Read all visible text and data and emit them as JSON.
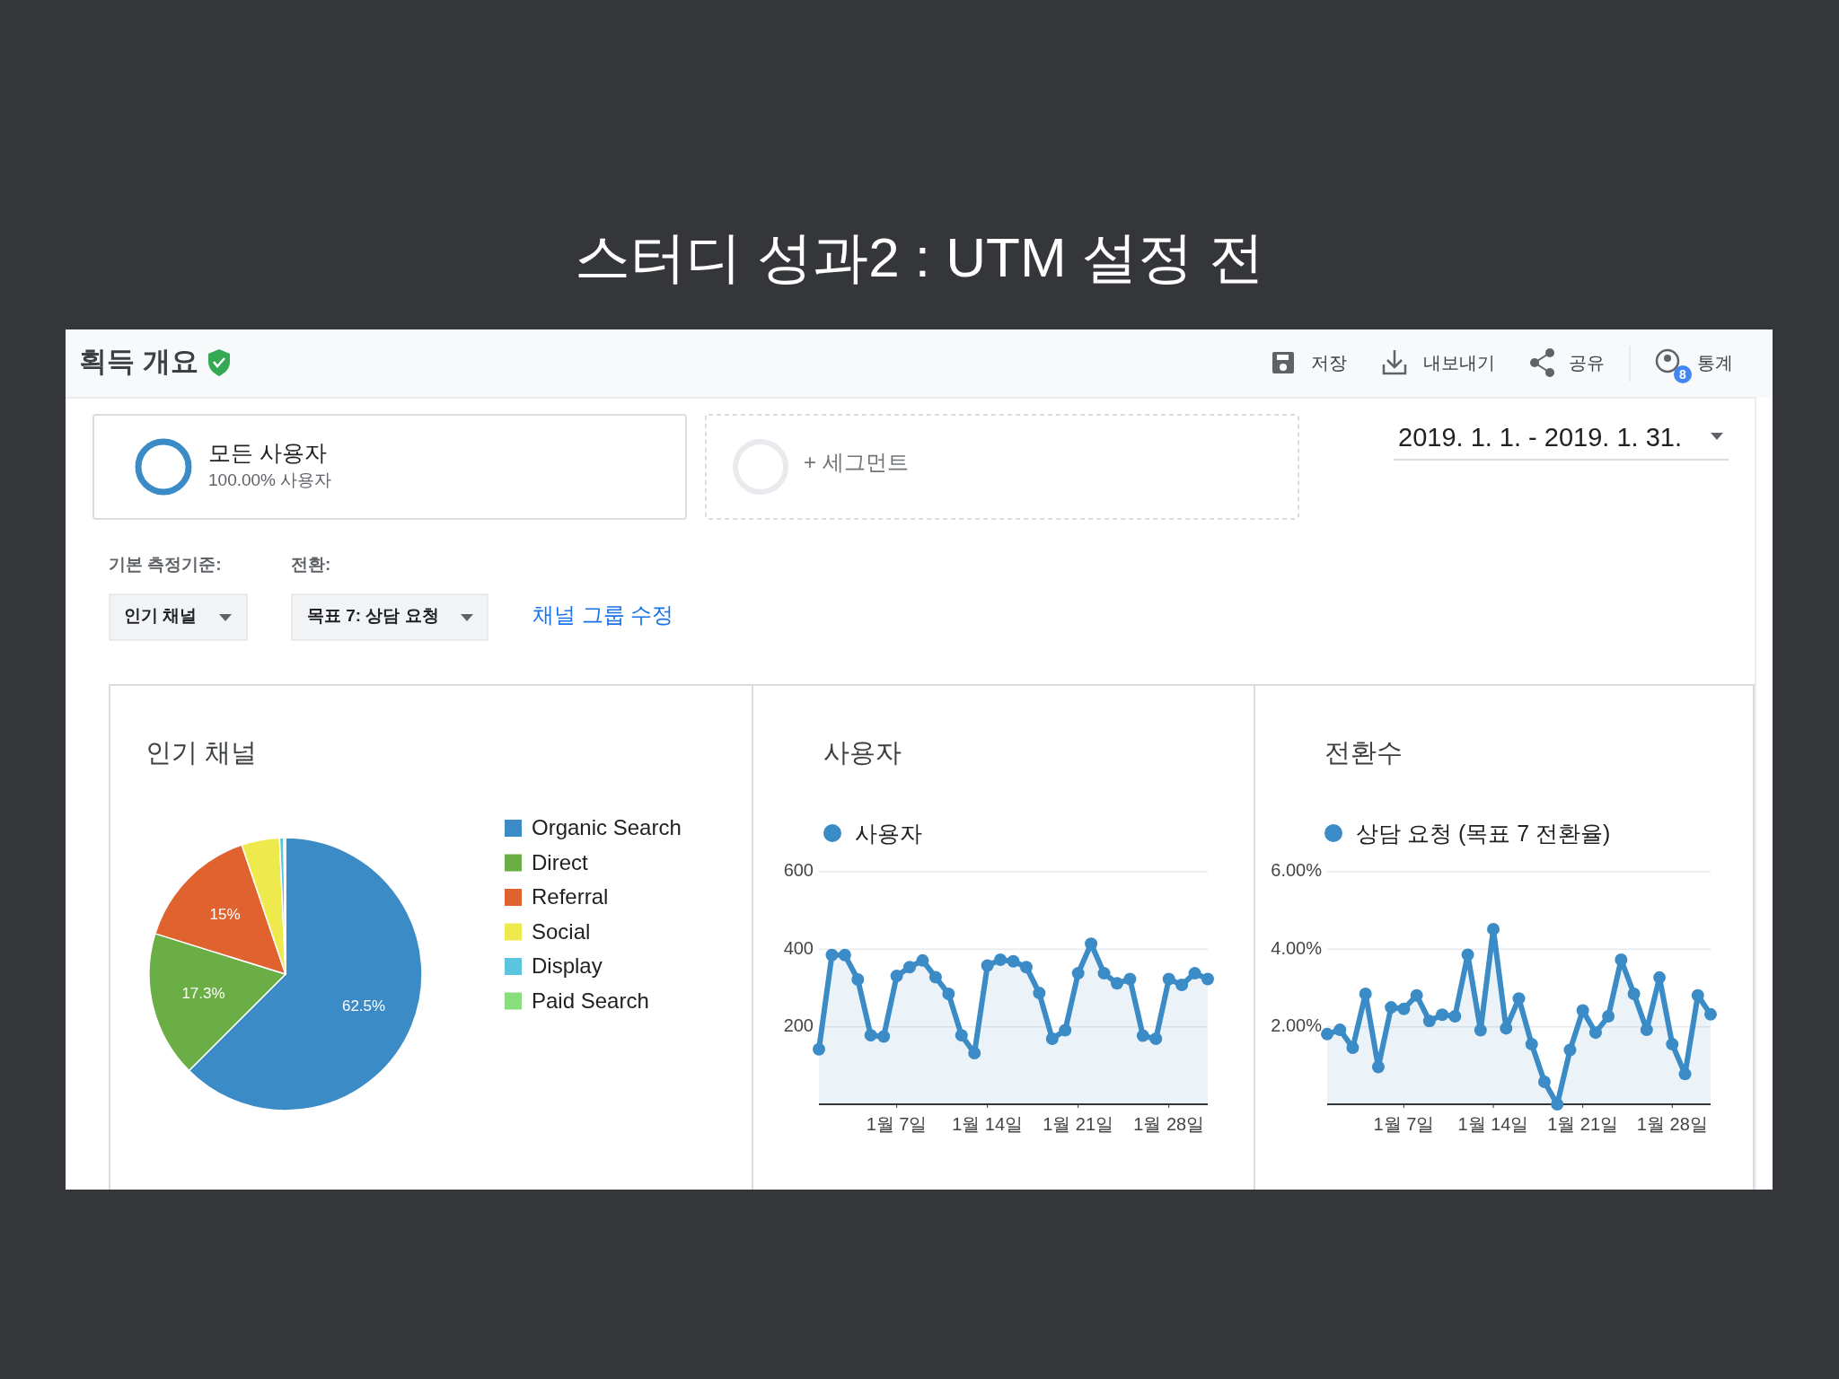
{
  "chart_data": [
    {
      "type": "other",
      "title": "스터디 성과2 : UTM 설정 전",
      "annotations": [
        "획득 개요",
        "저장",
        "내보내기",
        "공유",
        "8",
        "통계",
        "모든 사용자",
        "100.00% 사용자",
        "+ 세그먼트",
        "2019. 1. 1. - 2019. 1. 31.",
        "기본 측정기준:",
        "전환:",
        "인기 채널",
        "목표 7: 상담 요청",
        "채널 그룹 수정"
      ]
    },
    {
      "type": "pie",
      "title": "인기 채널",
      "categories": [
        "Organic Search",
        "Direct",
        "Referral",
        "Social",
        "Display",
        "Paid Search"
      ],
      "values": [
        62.5,
        17.3,
        15,
        4.5,
        0.5,
        0.2
      ],
      "colors": [
        "#3b8bc6",
        "#6aae45",
        "#e0622f",
        "#eeea4e",
        "#5bc5e0",
        "#88dd7c"
      ],
      "value_labels": [
        "62.5%",
        "17.3%",
        "15%",
        null,
        null,
        null
      ],
      "legend": "right"
    },
    {
      "type": "area",
      "title": "사용자",
      "xlim": [
        "2019-01-01",
        "2019-01-31"
      ],
      "xticks": [
        {
          "value": "2019-01-07",
          "label": "1월 7일"
        },
        {
          "value": "2019-01-14",
          "label": "1월 14일"
        },
        {
          "value": "2019-01-21",
          "label": "1월 21일"
        },
        {
          "value": "2019-01-28",
          "label": "1월 28일"
        }
      ],
      "ylim": [
        0,
        600
      ],
      "yticks": [
        {
          "value": 0,
          "label": null
        },
        200,
        400,
        600
      ],
      "grid": "y",
      "legend": "top left",
      "marker": "circle",
      "x": [
        "2019-01-01",
        "2019-01-02",
        "2019-01-03",
        "2019-01-04",
        "2019-01-05",
        "2019-01-06",
        "2019-01-07",
        "2019-01-08",
        "2019-01-09",
        "2019-01-10",
        "2019-01-11",
        "2019-01-12",
        "2019-01-13",
        "2019-01-14",
        "2019-01-15",
        "2019-01-16",
        "2019-01-17",
        "2019-01-18",
        "2019-01-19",
        "2019-01-20",
        "2019-01-21",
        "2019-01-22",
        "2019-01-23",
        "2019-01-24",
        "2019-01-25",
        "2019-01-26",
        "2019-01-27",
        "2019-01-28",
        "2019-01-29",
        "2019-01-30",
        "2019-01-31"
      ],
      "series": [
        {
          "name": "사용자",
          "color": "#3b8bc6",
          "values": [
            142,
            385,
            385,
            322,
            178,
            175,
            331,
            354,
            371,
            328,
            285,
            178,
            132,
            358,
            373,
            369,
            354,
            287,
            169,
            191,
            338,
            414,
            338,
            312,
            323,
            177,
            169,
            323,
            308,
            338,
            323
          ]
        }
      ]
    },
    {
      "type": "area",
      "title": "전환수",
      "xlim": [
        "2019-01-01",
        "2019-01-31"
      ],
      "xticks": [
        {
          "value": "2019-01-07",
          "label": "1월 7일"
        },
        {
          "value": "2019-01-14",
          "label": "1월 14일"
        },
        {
          "value": "2019-01-21",
          "label": "1월 21일"
        },
        {
          "value": "2019-01-28",
          "label": "1월 28일"
        }
      ],
      "ylim": [
        0,
        6
      ],
      "yticks": [
        {
          "value": 0,
          "label": null
        },
        {
          "value": 2,
          "label": "2.00%"
        },
        {
          "value": 4,
          "label": "4.00%"
        },
        {
          "value": 6,
          "label": "6.00%"
        }
      ],
      "grid": "y",
      "legend": "top left",
      "marker": "circle",
      "x": [
        "2019-01-01",
        "2019-01-02",
        "2019-01-03",
        "2019-01-04",
        "2019-01-05",
        "2019-01-06",
        "2019-01-07",
        "2019-01-08",
        "2019-01-09",
        "2019-01-10",
        "2019-01-11",
        "2019-01-12",
        "2019-01-13",
        "2019-01-14",
        "2019-01-15",
        "2019-01-16",
        "2019-01-17",
        "2019-01-18",
        "2019-01-19",
        "2019-01-20",
        "2019-01-21",
        "2019-01-22",
        "2019-01-23",
        "2019-01-24",
        "2019-01-25",
        "2019-01-26",
        "2019-01-27",
        "2019-01-28",
        "2019-01-29",
        "2019-01-30",
        "2019-01-31"
      ],
      "series": [
        {
          "name": "상담 요청 (목표 7 전환율)",
          "color": "#3b8bc6",
          "values": [
            1.81,
            1.92,
            1.46,
            2.85,
            0.96,
            2.5,
            2.46,
            2.81,
            2.15,
            2.31,
            2.27,
            3.86,
            1.91,
            4.52,
            1.96,
            2.73,
            1.55,
            0.58,
            0,
            1.4,
            2.42,
            1.85,
            2.27,
            3.73,
            2.85,
            1.92,
            3.27,
            1.55,
            0.78,
            2.81,
            2.32
          ]
        }
      ]
    }
  ]
}
